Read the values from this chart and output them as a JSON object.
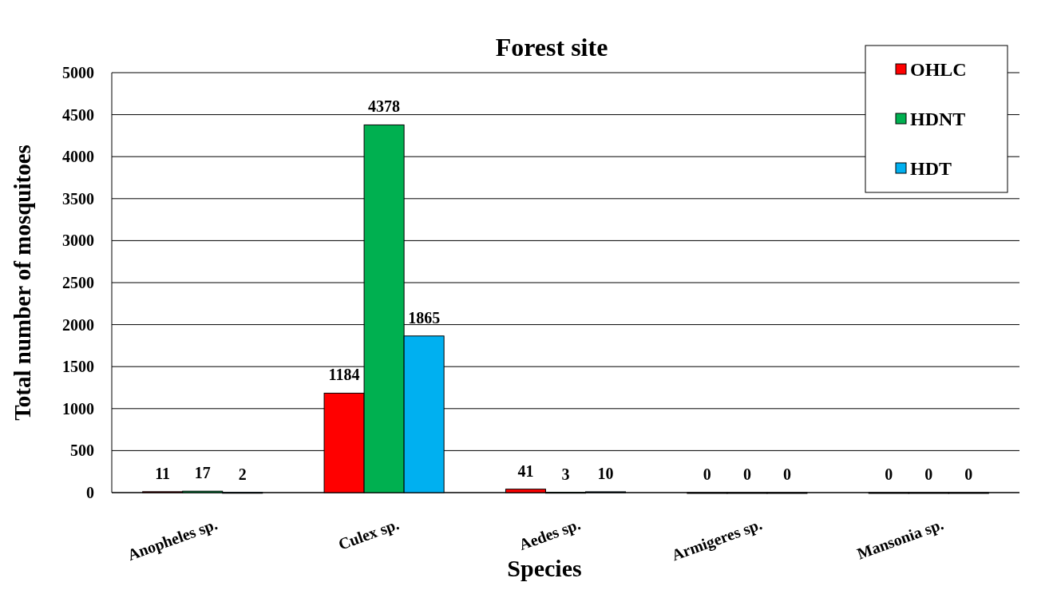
{
  "chart_data": {
    "type": "bar",
    "title": "Forest site",
    "xlabel": "Species",
    "ylabel": "Total number of mosquitoes",
    "categories": [
      "Anopheles sp.",
      "Culex sp.",
      "Aedes sp.",
      "Armigeres sp.",
      "Mansonia sp."
    ],
    "series": [
      {
        "name": "OHLC",
        "color": "#ff0000",
        "values": [
          11,
          1184,
          41,
          0,
          0
        ]
      },
      {
        "name": "HDNT",
        "color": "#00b050",
        "values": [
          17,
          4378,
          3,
          0,
          0
        ]
      },
      {
        "name": "HDT",
        "color": "#00b0f0",
        "values": [
          2,
          1865,
          10,
          0,
          0
        ]
      }
    ],
    "ylim": [
      0,
      5000
    ],
    "yticks": [
      0,
      500,
      1000,
      1500,
      2000,
      2500,
      3000,
      3500,
      4000,
      4500,
      5000
    ],
    "grid": "y",
    "legend": "top right",
    "data_labels": true
  }
}
